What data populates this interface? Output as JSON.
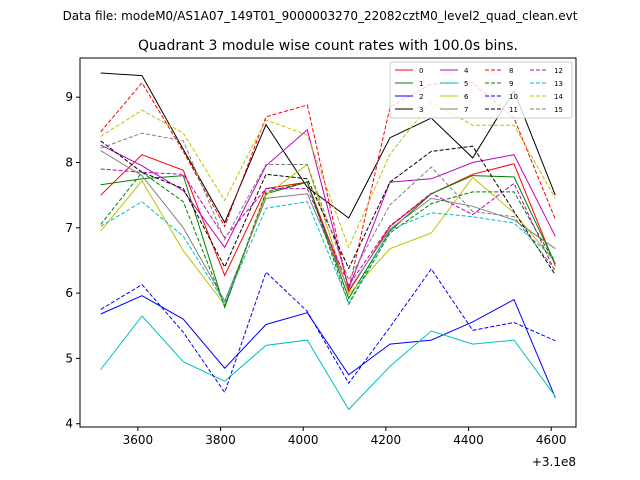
{
  "chart_data": {
    "type": "line",
    "suptitle": "Data file: modeM0/AS1A07_149T01_9000003270_22082cztM0_level2_quad_clean.evt",
    "title": "Quadrant 3 module wise count rates with 100.0s bins.",
    "xlabel": "",
    "ylabel": "",
    "x_offset_label": "+3.1e8",
    "x": [
      3510,
      3610,
      3710,
      3810,
      3910,
      4010,
      4110,
      4210,
      4310,
      4410,
      4510,
      4610
    ],
    "xlim": [
      3460,
      4660
    ],
    "ylim": [
      3.95,
      9.6
    ],
    "xticks": [
      3600,
      3800,
      4000,
      4200,
      4400,
      4600
    ],
    "xtick_labels": [
      "3600",
      "3800",
      "4000",
      "4200",
      "4400",
      "4600"
    ],
    "yticks": [
      4,
      5,
      6,
      7,
      8,
      9
    ],
    "ytick_labels": [
      "4",
      "5",
      "6",
      "7",
      "8",
      "9"
    ],
    "legend_position": "top-right",
    "series": [
      {
        "name": "0",
        "color": "#ff0000",
        "dash": "solid",
        "values": [
          7.5,
          8.12,
          7.88,
          6.27,
          7.6,
          7.7,
          6.02,
          7.02,
          7.52,
          7.82,
          7.98,
          6.42
        ]
      },
      {
        "name": "1",
        "color": "#008000",
        "dash": "solid",
        "values": [
          7.66,
          7.75,
          7.8,
          5.78,
          7.52,
          7.7,
          5.92,
          6.95,
          7.52,
          7.8,
          7.78,
          6.45
        ]
      },
      {
        "name": "2",
        "color": "#0000ff",
        "dash": "solid",
        "values": [
          5.68,
          5.96,
          5.6,
          4.85,
          5.52,
          5.7,
          4.75,
          5.22,
          5.28,
          5.56,
          5.9,
          4.4
        ]
      },
      {
        "name": "3",
        "color": "#000000",
        "dash": "solid",
        "values": [
          9.37,
          9.33,
          8.2,
          7.08,
          8.58,
          7.62,
          7.15,
          8.38,
          8.68,
          8.07,
          9.1,
          7.5
        ]
      },
      {
        "name": "4",
        "color": "#c000c0",
        "dash": "solid",
        "values": [
          8.27,
          7.95,
          7.57,
          6.7,
          7.95,
          8.5,
          6.07,
          7.7,
          7.75,
          8.0,
          8.12,
          6.87
        ]
      },
      {
        "name": "5",
        "color": "#00c0c0",
        "dash": "solid",
        "values": [
          4.83,
          5.65,
          4.95,
          4.65,
          5.2,
          5.28,
          4.22,
          4.88,
          5.42,
          5.22,
          5.28,
          4.42
        ]
      },
      {
        "name": "6",
        "color": "#c0c000",
        "dash": "solid",
        "values": [
          6.95,
          7.72,
          6.65,
          5.82,
          7.5,
          7.97,
          5.98,
          6.68,
          6.92,
          7.77,
          7.23,
          6.47
        ]
      },
      {
        "name": "7",
        "color": "#808080",
        "dash": "solid",
        "values": [
          8.18,
          7.8,
          7.0,
          5.88,
          7.45,
          7.52,
          6.05,
          6.98,
          7.45,
          7.33,
          7.12,
          6.68
        ]
      },
      {
        "name": "8",
        "color": "#ff0000",
        "dash": "dashed",
        "values": [
          8.47,
          9.22,
          8.17,
          7.02,
          8.7,
          8.88,
          6.05,
          8.85,
          9.2,
          9.22,
          8.68,
          7.13
        ]
      },
      {
        "name": "9",
        "color": "#008000",
        "dash": "dashed",
        "values": [
          7.05,
          7.85,
          7.4,
          5.8,
          7.55,
          7.7,
          5.83,
          6.92,
          7.37,
          7.55,
          7.55,
          6.45
        ]
      },
      {
        "name": "10",
        "color": "#0000ff",
        "dash": "dashed",
        "values": [
          5.75,
          6.13,
          5.4,
          4.48,
          6.32,
          5.72,
          4.62,
          5.48,
          6.37,
          5.43,
          5.55,
          5.27
        ]
      },
      {
        "name": "11",
        "color": "#000000",
        "dash": "dashed",
        "values": [
          8.33,
          7.85,
          7.6,
          6.4,
          7.82,
          7.75,
          6.38,
          7.7,
          8.17,
          8.25,
          7.25,
          6.28
        ]
      },
      {
        "name": "12",
        "color": "#c000c0",
        "dash": "dashed",
        "values": [
          7.9,
          7.85,
          7.82,
          6.85,
          7.6,
          7.6,
          6.12,
          7.03,
          7.53,
          7.2,
          7.68,
          6.32
        ]
      },
      {
        "name": "13",
        "color": "#00c0c0",
        "dash": "dashed",
        "values": [
          7.02,
          7.4,
          6.87,
          5.85,
          7.3,
          7.4,
          5.85,
          6.97,
          7.23,
          7.17,
          7.07,
          6.52
        ]
      },
      {
        "name": "14",
        "color": "#c0c000",
        "dash": "dashed",
        "values": [
          8.4,
          8.8,
          8.45,
          7.42,
          8.65,
          8.42,
          6.7,
          8.13,
          8.92,
          8.57,
          8.57,
          7.45
        ]
      },
      {
        "name": "15",
        "color": "#808080",
        "dash": "dashed",
        "values": [
          8.22,
          8.45,
          8.33,
          6.82,
          7.97,
          7.97,
          6.2,
          7.35,
          7.93,
          7.25,
          7.17,
          6.35
        ]
      }
    ]
  }
}
